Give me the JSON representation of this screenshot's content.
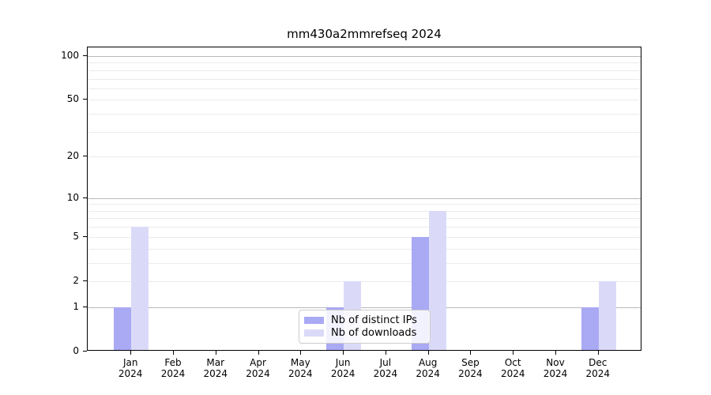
{
  "chart_data": {
    "type": "bar",
    "title": "mm430a2mmrefseq 2024",
    "categories": [
      "Jan 2024",
      "Feb 2024",
      "Mar 2024",
      "Apr 2024",
      "May 2024",
      "Jun 2024",
      "Jul 2024",
      "Aug 2024",
      "Sep 2024",
      "Oct 2024",
      "Nov 2024",
      "Dec 2024"
    ],
    "series": [
      {
        "name": "Nb of distinct IPs",
        "color": "#a9a9f4",
        "values": [
          1,
          0,
          0,
          0,
          0,
          1,
          0,
          5,
          0,
          0,
          0,
          1
        ]
      },
      {
        "name": "Nb of downloads",
        "color": "#dadaf8",
        "values": [
          6,
          0,
          0,
          0,
          0,
          2,
          0,
          8,
          0,
          0,
          0,
          2
        ]
      }
    ],
    "xlabel": "",
    "ylabel": "",
    "ylim": [
      0,
      100
    ],
    "yscale": "log1p",
    "yticks": [
      0,
      1,
      2,
      5,
      10,
      20,
      50,
      100
    ],
    "major_gridline_values": [
      1,
      10,
      100
    ],
    "minor_gridline_values": [
      2,
      3,
      4,
      5,
      6,
      7,
      8,
      9,
      20,
      30,
      40,
      50,
      60,
      70,
      80,
      90
    ],
    "grid": true,
    "legend_position": "inside-bottom-center"
  }
}
